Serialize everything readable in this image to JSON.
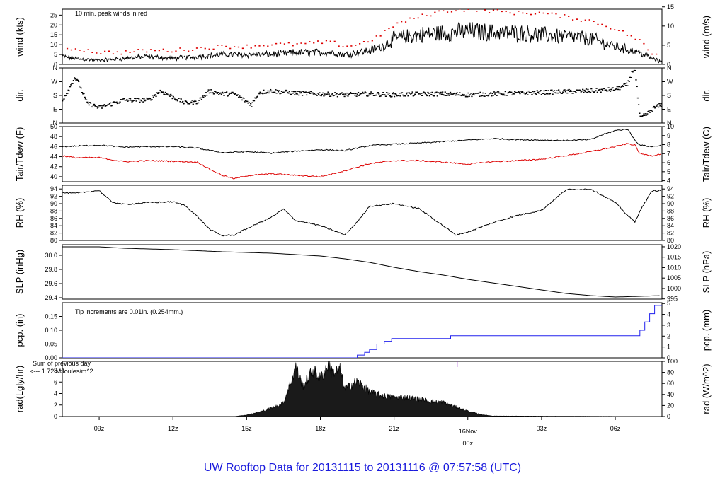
{
  "title": "UW Rooftop Data for 20131115  to  20131116 @ 07:57:58  (UTC)",
  "x_ticks": [
    "09z",
    "12z",
    "15z",
    "18z",
    "21z",
    "03z",
    "06z"
  ],
  "x_tick_hours": [
    9,
    12,
    15,
    18,
    21,
    27,
    30
  ],
  "date_marker": {
    "hour": 24,
    "line1": "16Nov",
    "line2": "00z"
  },
  "colors": {
    "primary": "#000000",
    "dewpoint": "#dd0000",
    "precip": "#2222ee",
    "solar_note": "#9933cc",
    "title": "#1a1adc"
  },
  "chart_data": [
    {
      "type": "line",
      "id": "wind",
      "left_label": "wind (kts)",
      "right_label": "wind (m/s)",
      "annotation": "10 min. peak winds in red",
      "ylim": [
        0,
        28
      ],
      "yticks_left": [
        0,
        5,
        10,
        15,
        20,
        25
      ],
      "ylim_right": [
        0,
        14.4
      ],
      "yticks_right": [
        0,
        5,
        10,
        15
      ],
      "series": [
        {
          "name": "wind",
          "x": [
            7.5,
            8,
            9,
            10,
            11,
            12,
            13,
            14,
            15,
            16,
            17,
            18,
            18.5,
            19,
            19.5,
            20,
            20.5,
            21,
            22,
            23,
            24,
            25,
            26,
            27,
            28,
            29,
            30,
            31,
            31.5,
            31.9
          ],
          "y": [
            4,
            3,
            2,
            3,
            4,
            3,
            4,
            5,
            5,
            5,
            6,
            6,
            6,
            5,
            6,
            7,
            9,
            13,
            15,
            16,
            17,
            16,
            16,
            15,
            14,
            13,
            9,
            6,
            3,
            1
          ]
        },
        {
          "name": "peak",
          "x": [
            8,
            9,
            10,
            11,
            12,
            13,
            14,
            15,
            16,
            17,
            18,
            18.5,
            19,
            19.5,
            20,
            20.5,
            21,
            22,
            23,
            24,
            25,
            26,
            27,
            28,
            29,
            30,
            31,
            31.5
          ],
          "y": [
            8,
            6,
            6,
            7,
            7,
            8,
            9,
            9,
            10,
            10,
            11,
            11,
            9,
            10,
            12,
            15,
            20,
            24,
            27,
            28,
            27,
            26,
            26,
            24,
            22,
            18,
            12,
            5
          ]
        }
      ]
    },
    {
      "type": "scatter",
      "id": "dir",
      "left_label": "dir.",
      "right_label": "dir.",
      "ylim": [
        0,
        360
      ],
      "yticks_left": [
        "N",
        "E",
        "S",
        "W",
        "N"
      ],
      "yticks_right": [
        "N",
        "E",
        "S",
        "W",
        "N"
      ],
      "series": [
        {
          "name": "direction",
          "x": [
            7.5,
            7.8,
            8,
            8.2,
            8.5,
            9,
            10,
            11,
            11.5,
            12,
            12.5,
            13,
            13.5,
            14,
            14.5,
            15,
            15.2,
            15.5,
            16,
            17,
            18,
            19,
            20,
            21,
            22,
            23,
            24,
            25,
            26,
            27,
            28,
            29,
            30,
            30.5,
            30.7,
            30.8,
            31,
            31.3,
            31.6,
            31.9
          ],
          "y": [
            150,
            230,
            300,
            250,
            130,
            100,
            150,
            150,
            210,
            170,
            130,
            140,
            210,
            190,
            190,
            140,
            120,
            200,
            210,
            195,
            190,
            185,
            190,
            185,
            190,
            190,
            185,
            190,
            195,
            200,
            205,
            210,
            220,
            250,
            340,
            355,
            30,
            60,
            100,
            120
          ]
        }
      ]
    },
    {
      "type": "line",
      "id": "temp",
      "left_label": "Tair/Tdew (F)",
      "right_label": "Tair/Tdew (C)",
      "ylim": [
        39,
        50
      ],
      "yticks_left": [
        40,
        42,
        44,
        46,
        48,
        50
      ],
      "ylim_right": [
        3.89,
        10
      ],
      "yticks_right": [
        4,
        5,
        6,
        7,
        8,
        9,
        10
      ],
      "series": [
        {
          "name": "Tair",
          "x": [
            7.5,
            9,
            10,
            11,
            12,
            13,
            14,
            15,
            16,
            17,
            18,
            19,
            20,
            21,
            22,
            23,
            24,
            25,
            26,
            27,
            28,
            29,
            29.5,
            30,
            30.5,
            30.8,
            31,
            31.5,
            31.9
          ],
          "y": [
            46,
            46.3,
            45.9,
            46,
            46,
            45.7,
            44.8,
            45,
            44.7,
            45.1,
            45.4,
            45.2,
            46.2,
            46.5,
            46.7,
            47.0,
            47.3,
            47.6,
            47.4,
            47.3,
            47.2,
            47.4,
            48.4,
            49.2,
            49.5,
            47.3,
            46.3,
            46.0,
            46.3
          ]
        },
        {
          "name": "Tdew",
          "x": [
            7.5,
            8,
            9,
            10,
            11,
            12,
            13,
            13.5,
            14,
            14.5,
            15,
            16,
            17,
            18,
            19,
            20,
            21,
            22,
            23,
            24,
            25,
            26,
            27,
            28,
            29,
            30,
            30.5,
            30.8,
            31,
            31.5,
            31.9
          ],
          "y": [
            44.2,
            43.8,
            43.8,
            43.0,
            43.2,
            43.1,
            42.9,
            41.5,
            40.3,
            39.6,
            40.2,
            40.6,
            40.3,
            40.0,
            41.2,
            42.6,
            43.2,
            43.2,
            42.9,
            42.5,
            43.0,
            43.2,
            43.5,
            44.2,
            45.0,
            46.0,
            46.6,
            46.3,
            44.6,
            44.2,
            44.6
          ]
        }
      ]
    },
    {
      "type": "line",
      "id": "rh",
      "left_label": "RH (%)",
      "right_label": "RH (%)",
      "ylim": [
        80,
        95
      ],
      "yticks_left": [
        80,
        82,
        84,
        86,
        88,
        90,
        92,
        94
      ],
      "yticks_right": [
        80,
        82,
        84,
        86,
        88,
        90,
        92,
        94
      ],
      "series": [
        {
          "name": "RH",
          "x": [
            7.5,
            8,
            9,
            9.5,
            10,
            11,
            12,
            12.5,
            13,
            13.5,
            14,
            14.5,
            15,
            16,
            16.5,
            17,
            17.5,
            18,
            19,
            19.5,
            20,
            21,
            22,
            23,
            23.5,
            24,
            25,
            26,
            27,
            28,
            29,
            30,
            30.5,
            30.8,
            31,
            31.5,
            31.9
          ],
          "y": [
            93,
            92.8,
            93.6,
            90.5,
            89.8,
            90.3,
            90.5,
            89.5,
            86.5,
            83.0,
            81.3,
            81.5,
            83.2,
            86.3,
            88.5,
            85.4,
            84.8,
            84.0,
            81.5,
            85.0,
            89.3,
            90.0,
            88.7,
            84.0,
            81.5,
            82.3,
            84.8,
            86.8,
            88.2,
            93.8,
            94.0,
            90.3,
            86.8,
            85.0,
            88.0,
            93.5,
            93.6
          ]
        }
      ]
    },
    {
      "type": "line",
      "id": "slp",
      "left_label": "SLP (inHg)",
      "right_label": "SLP (hPa)",
      "ylim": [
        29.38,
        30.15
      ],
      "yticks_left": [
        "29.4",
        "29.6",
        "29.8",
        "30.0"
      ],
      "ylim_right": [
        994.9,
        1021.0
      ],
      "yticks_right": [
        995,
        1000,
        1005,
        1010,
        1015,
        1020
      ],
      "series": [
        {
          "name": "SLP",
          "x": [
            7.5,
            9,
            10,
            12,
            14,
            15,
            16,
            17,
            18,
            19,
            20,
            21,
            22,
            23,
            24,
            25,
            26,
            27,
            28,
            29,
            30,
            31,
            31.9
          ],
          "y": [
            30.12,
            30.12,
            30.1,
            30.08,
            30.05,
            30.04,
            30.03,
            30.01,
            29.99,
            29.95,
            29.9,
            29.83,
            29.77,
            29.72,
            29.66,
            29.61,
            29.56,
            29.51,
            29.46,
            29.43,
            29.41,
            29.42,
            29.43
          ]
        }
      ]
    },
    {
      "type": "line",
      "id": "pcp",
      "left_label": "pcp. (in)",
      "right_label": "pcp. (mm)",
      "annotation": "Tip increments are 0.01in. (0.254mm.)",
      "ylim": [
        0,
        0.2
      ],
      "yticks_left": [
        "0.00",
        "0.05",
        "0.10",
        "0.15"
      ],
      "ylim_right": [
        0,
        5.08
      ],
      "yticks_right": [
        0,
        1,
        2,
        3,
        4,
        5
      ],
      "series": [
        {
          "name": "precip",
          "x": [
            7.5,
            19.3,
            19.5,
            19.8,
            20.0,
            20.3,
            20.6,
            20.9,
            21.5,
            23.3,
            30.8,
            31.0,
            31.2,
            31.4,
            31.6,
            31.9
          ],
          "y": [
            0,
            0,
            0.01,
            0.02,
            0.03,
            0.05,
            0.06,
            0.07,
            0.07,
            0.08,
            0.08,
            0.1,
            0.13,
            0.16,
            0.19,
            0.19
          ]
        }
      ]
    },
    {
      "type": "area",
      "id": "rad",
      "left_label": "rad(Lgly/hr)",
      "right_label": "rad (W/m^2)",
      "annotation_1": "Sum of previous day",
      "annotation_2": "<--- 1.72 MJoules/m^2",
      "ylim": [
        0,
        9.6
      ],
      "yticks_left": [
        0,
        2,
        4,
        6,
        8
      ],
      "ylim_right": [
        0,
        100
      ],
      "yticks_right": [
        0,
        20,
        40,
        60,
        80,
        100
      ],
      "series": [
        {
          "name": "solar",
          "x": [
            7.5,
            14.5,
            15,
            15.5,
            16,
            16.5,
            17,
            17.3,
            17.7,
            18,
            18.3,
            18.5,
            18.8,
            19,
            19.5,
            20,
            20.5,
            21,
            21.5,
            22,
            22.5,
            23,
            23.5,
            24,
            24.5,
            25,
            31.9
          ],
          "y": [
            0,
            0,
            0.3,
            0.8,
            1.5,
            2.5,
            9.0,
            5.5,
            8.5,
            7.0,
            9.3,
            8.0,
            8.5,
            5.0,
            6.5,
            4.5,
            3.8,
            3.5,
            3.5,
            3.2,
            2.8,
            2.6,
            1.8,
            1.0,
            0.4,
            0.1,
            0
          ]
        }
      ]
    }
  ]
}
